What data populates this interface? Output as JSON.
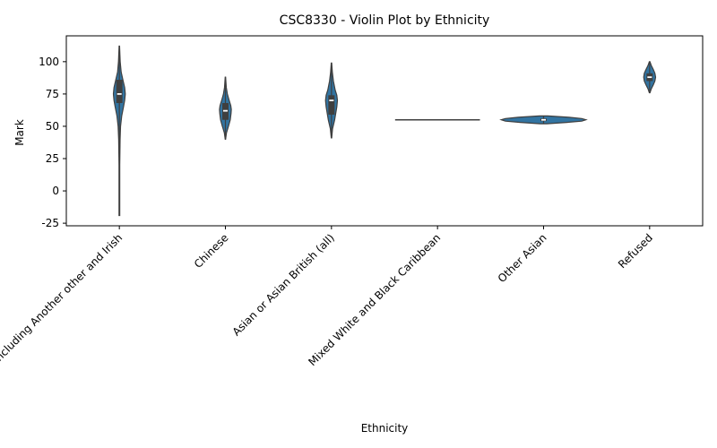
{
  "chart_data": {
    "type": "violin",
    "title": "CSC8330 - Violin Plot by Ethnicity",
    "xlabel": "Ethnicity",
    "ylabel": "Mark",
    "ylim": [
      -27,
      120
    ],
    "yticks": [
      -25,
      0,
      25,
      50,
      75,
      100
    ],
    "grid": false,
    "color": "#3274a1",
    "categories": [
      "White including Another other and Irish",
      "Chinese",
      "Asian or Asian British (all)",
      "Mixed White and Black Caribbean",
      "Other Asian",
      "Refused"
    ],
    "violins": [
      {
        "min": -19,
        "max": 112,
        "q1": 68,
        "median": 75,
        "q3": 86,
        "profile": [
          [
            -19,
            0.03
          ],
          [
            20,
            0.03
          ],
          [
            40,
            0.06
          ],
          [
            50,
            0.1
          ],
          [
            58,
            0.2
          ],
          [
            65,
            0.35
          ],
          [
            70,
            0.45
          ],
          [
            75,
            0.5
          ],
          [
            80,
            0.45
          ],
          [
            86,
            0.3
          ],
          [
            92,
            0.15
          ],
          [
            100,
            0.07
          ],
          [
            112,
            0.02
          ]
        ]
      },
      {
        "min": 40,
        "max": 88,
        "q1": 55,
        "median": 62,
        "q3": 68,
        "profile": [
          [
            40,
            0.02
          ],
          [
            45,
            0.1
          ],
          [
            50,
            0.28
          ],
          [
            55,
            0.45
          ],
          [
            60,
            0.52
          ],
          [
            63,
            0.55
          ],
          [
            66,
            0.5
          ],
          [
            70,
            0.35
          ],
          [
            75,
            0.18
          ],
          [
            80,
            0.08
          ],
          [
            88,
            0.02
          ]
        ]
      },
      {
        "min": 41,
        "max": 99,
        "q1": 59,
        "median": 70,
        "q3": 74,
        "profile": [
          [
            41,
            0.02
          ],
          [
            48,
            0.1
          ],
          [
            55,
            0.3
          ],
          [
            60,
            0.4
          ],
          [
            65,
            0.5
          ],
          [
            70,
            0.56
          ],
          [
            74,
            0.5
          ],
          [
            78,
            0.35
          ],
          [
            85,
            0.18
          ],
          [
            92,
            0.08
          ],
          [
            99,
            0.02
          ]
        ]
      },
      {
        "flat": true,
        "value": 55
      },
      {
        "min": 52,
        "max": 58,
        "q1": 54,
        "median": 55,
        "q3": 56,
        "profile": [
          [
            52,
            0.08
          ],
          [
            53,
            0.55
          ],
          [
            54,
            0.9
          ],
          [
            55,
            1.0
          ],
          [
            56,
            0.9
          ],
          [
            57,
            0.6
          ],
          [
            58,
            0.1
          ]
        ]
      },
      {
        "min": 76,
        "max": 100,
        "q1": 85,
        "median": 88,
        "q3": 91,
        "profile": [
          [
            76,
            0.05
          ],
          [
            79,
            0.25
          ],
          [
            82,
            0.55
          ],
          [
            85,
            0.8
          ],
          [
            88,
            0.9
          ],
          [
            91,
            0.8
          ],
          [
            94,
            0.55
          ],
          [
            97,
            0.25
          ],
          [
            100,
            0.05
          ]
        ]
      }
    ]
  }
}
